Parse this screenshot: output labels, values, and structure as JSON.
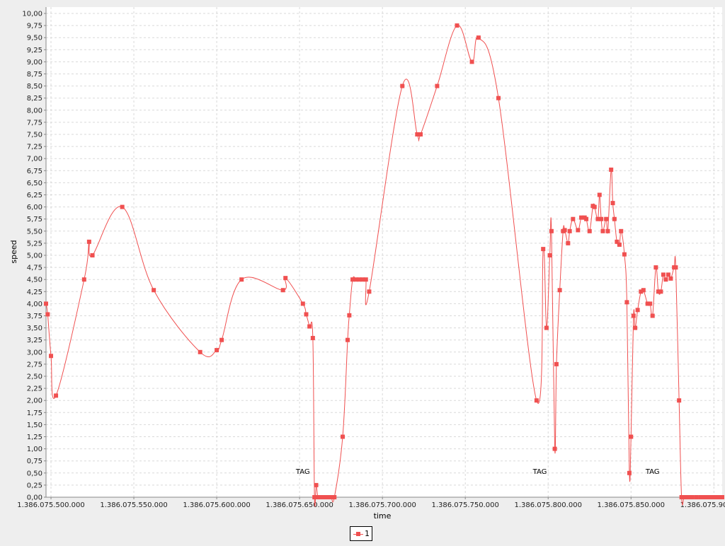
{
  "chart_data": {
    "type": "line",
    "title": "",
    "xlabel": "time",
    "ylabel": "speed",
    "xlim": [
      1386075497000,
      1386075905000
    ],
    "ylim": [
      0,
      10
    ],
    "x_ticks": [
      1386075500000,
      1386075550000,
      1386075600000,
      1386075650000,
      1386075700000,
      1386075750000,
      1386075800000,
      1386075850000,
      1386075900000
    ],
    "x_tick_labels": [
      "1.386.075.500.000",
      "1.386.075.550.000",
      "1.386.075.600.000",
      "1.386.075.650.000",
      "1.386.075.700.000",
      "1.386.075.750.000",
      "1.386.075.800.000",
      "1.386.075.850.000",
      "1.386.075.900.000"
    ],
    "y_ticks": [
      0,
      0.25,
      0.5,
      0.75,
      1,
      1.25,
      1.5,
      1.75,
      2,
      2.25,
      2.5,
      2.75,
      3,
      3.25,
      3.5,
      3.75,
      4,
      4.25,
      4.5,
      4.75,
      5,
      5.25,
      5.5,
      5.75,
      6,
      6.25,
      6.5,
      6.75,
      7,
      7.25,
      7.5,
      7.75,
      8,
      8.25,
      8.5,
      8.75,
      9,
      9.25,
      9.5,
      9.75,
      10
    ],
    "y_tick_labels": [
      "0,00",
      "0,25",
      "0,50",
      "0,75",
      "1,00",
      "1,25",
      "1,50",
      "1,75",
      "2,00",
      "2,25",
      "2,50",
      "2,75",
      "3,00",
      "3,25",
      "3,50",
      "3,75",
      "4,00",
      "4,25",
      "4,50",
      "4,75",
      "5,00",
      "5,25",
      "5,50",
      "5,75",
      "6,00",
      "6,25",
      "6,50",
      "6,75",
      "7,00",
      "7,25",
      "7,50",
      "7,75",
      "8,00",
      "8,25",
      "8,50",
      "8,75",
      "9,00",
      "9,25",
      "9,50",
      "9,75",
      "10,00"
    ],
    "grid": true,
    "legend_position": "bottom-center",
    "series": [
      {
        "name": "1",
        "color": "#f05050",
        "x": [
          1386075497000,
          1386075498000,
          1386075500000,
          1386075503000,
          1386075520000,
          1386075523000,
          1386075525000,
          1386075543000,
          1386075562000,
          1386075590000,
          1386075600000,
          1386075603000,
          1386075615000,
          1386075640000,
          1386075641500,
          1386075652000,
          1386075654000,
          1386075656000,
          1386075658000,
          1386075659000,
          1386075660000,
          1386075661000,
          1386075662000,
          1386075663000,
          1386075665000,
          1386075667000,
          1386075669000,
          1386075671000,
          1386075676000,
          1386075679000,
          1386075680000,
          1386075682000,
          1386075684000,
          1386075686000,
          1386075688000,
          1386075690000,
          1386075692000,
          1386075712000,
          1386075721000,
          1386075723000,
          1386075733000,
          1386075745000,
          1386075754000,
          1386075758000,
          1386075770000,
          1386075793000,
          1386075797000,
          1386075799000,
          1386075801000,
          1386075802000,
          1386075804000,
          1386075805000,
          1386075807000,
          1386075809000,
          1386075810000,
          1386075812000,
          1386075813000,
          1386075815000,
          1386075818000,
          1386075820000,
          1386075822000,
          1386075823000,
          1386075825000,
          1386075827000,
          1386075828000,
          1386075830000,
          1386075831000,
          1386075832000,
          1386075833000,
          1386075835000,
          1386075836000,
          1386075838000,
          1386075839000,
          1386075840000,
          1386075841500,
          1386075843000,
          1386075844000,
          1386075846000,
          1386075847500,
          1386075849000,
          1386075850000,
          1386075851500,
          1386075852500,
          1386075854000,
          1386075856000,
          1386075857500,
          1386075860000,
          1386075861500,
          1386075863000,
          1386075865000,
          1386075866500,
          1386075868000,
          1386075869500,
          1386075871000,
          1386075872500,
          1386075874000,
          1386075876000,
          1386075877000,
          1386075879000,
          1386075880500,
          1386075882000,
          1386075883500,
          1386075885000,
          1386075887000,
          1386075889500,
          1386075892000,
          1386075893500,
          1386075894500,
          1386075896000,
          1386075898000,
          1386075900000,
          1386075901500,
          1386075903500,
          1386075905000
        ],
        "y": [
          4.0,
          3.78,
          2.92,
          2.1,
          4.5,
          5.28,
          5.0,
          6.0,
          4.28,
          3.0,
          3.04,
          3.25,
          4.5,
          4.28,
          4.53,
          4.0,
          3.78,
          3.53,
          3.29,
          0.0,
          0.25,
          0.0,
          0.0,
          0.0,
          0.0,
          0.0,
          0.0,
          0.0,
          1.25,
          3.25,
          3.76,
          4.5,
          4.5,
          4.5,
          4.5,
          4.5,
          4.25,
          8.5,
          7.5,
          7.5,
          8.5,
          9.75,
          9.0,
          9.5,
          8.25,
          2.0,
          5.13,
          3.5,
          5.0,
          5.5,
          1.0,
          2.75,
          4.28,
          5.5,
          5.52,
          5.25,
          5.5,
          5.75,
          5.52,
          5.78,
          5.78,
          5.75,
          5.5,
          6.02,
          6.0,
          5.75,
          6.25,
          5.75,
          5.5,
          5.75,
          5.5,
          6.77,
          6.08,
          5.75,
          5.28,
          5.22,
          5.5,
          5.02,
          4.03,
          0.5,
          1.25,
          3.75,
          3.5,
          3.87,
          4.25,
          4.28,
          4.0,
          4.0,
          3.75,
          4.75,
          4.25,
          4.25,
          4.6,
          4.5,
          4.6,
          4.52,
          4.75,
          4.75,
          2.0,
          0.0,
          0.0,
          0.0,
          0.0,
          0.0,
          0.0,
          0.0,
          0.0,
          0.0,
          0.0,
          0.0,
          0.0,
          0.0,
          0.0,
          0.0
        ]
      }
    ],
    "annotations": [
      {
        "text": "TAG",
        "x": 1386075652000,
        "y": 0.48
      },
      {
        "text": "TAG",
        "x": 1386075795000,
        "y": 0.48
      },
      {
        "text": "TAG",
        "x": 1386075863000,
        "y": 0.48
      }
    ]
  }
}
